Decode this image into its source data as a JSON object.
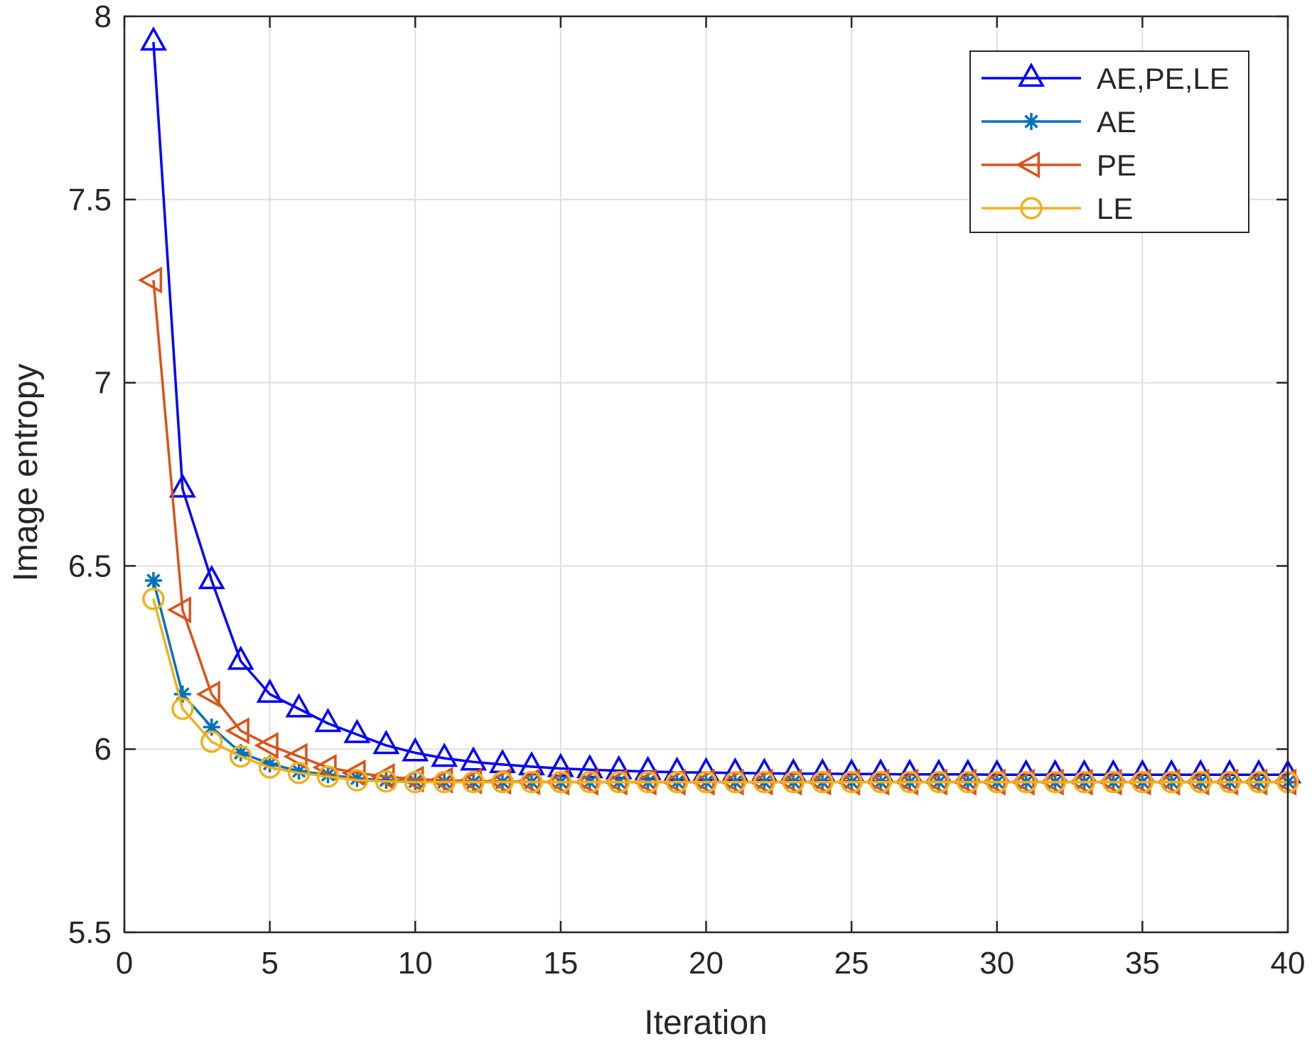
{
  "chart_data": {
    "type": "line",
    "title": "",
    "xlabel": "Iteration",
    "ylabel": "Image entropy",
    "xlim": [
      0,
      40
    ],
    "ylim": [
      5.5,
      8
    ],
    "xticks": [
      0,
      5,
      10,
      15,
      20,
      25,
      30,
      35,
      40
    ],
    "yticks": [
      5.5,
      6,
      6.5,
      7,
      7.5,
      8
    ],
    "xtick_labels": [
      "0",
      "5",
      "10",
      "15",
      "20",
      "25",
      "30",
      "35",
      "40"
    ],
    "ytick_labels": [
      "5.5",
      "6",
      "6.5",
      "7",
      "7.5",
      "8"
    ],
    "grid": true,
    "legend_position": "top-right",
    "x": [
      1,
      2,
      3,
      4,
      5,
      6,
      7,
      8,
      9,
      10,
      11,
      12,
      13,
      14,
      15,
      16,
      17,
      18,
      19,
      20,
      21,
      22,
      23,
      24,
      25,
      26,
      27,
      28,
      29,
      30,
      31,
      32,
      33,
      34,
      35,
      36,
      37,
      38,
      39,
      40
    ],
    "series": [
      {
        "name": "AE,PE,LE",
        "color": "#0000ff",
        "marker": "triangle-up",
        "values": [
          7.93,
          6.71,
          6.46,
          6.24,
          6.15,
          6.11,
          6.07,
          6.04,
          6.01,
          5.99,
          5.975,
          5.965,
          5.958,
          5.952,
          5.947,
          5.944,
          5.941,
          5.939,
          5.937,
          5.936,
          5.935,
          5.934,
          5.933,
          5.933,
          5.932,
          5.932,
          5.931,
          5.931,
          5.931,
          5.93,
          5.93,
          5.93,
          5.93,
          5.93,
          5.93,
          5.93,
          5.93,
          5.93,
          5.93,
          5.93
        ]
      },
      {
        "name": "AE",
        "color": "#0072bd",
        "marker": "asterisk",
        "values": [
          6.46,
          6.15,
          6.06,
          5.99,
          5.96,
          5.94,
          5.93,
          5.92,
          5.915,
          5.912,
          5.911,
          5.91,
          5.91,
          5.91,
          5.91,
          5.91,
          5.91,
          5.91,
          5.91,
          5.91,
          5.91,
          5.91,
          5.91,
          5.91,
          5.91,
          5.91,
          5.91,
          5.91,
          5.91,
          5.91,
          5.91,
          5.91,
          5.91,
          5.91,
          5.91,
          5.91,
          5.91,
          5.91,
          5.91,
          5.91
        ]
      },
      {
        "name": "PE",
        "color": "#d95319",
        "marker": "triangle-left",
        "values": [
          7.28,
          6.38,
          6.15,
          6.05,
          6.01,
          5.98,
          5.95,
          5.935,
          5.925,
          5.918,
          5.915,
          5.913,
          5.912,
          5.911,
          5.91,
          5.91,
          5.91,
          5.91,
          5.91,
          5.91,
          5.91,
          5.91,
          5.91,
          5.91,
          5.91,
          5.91,
          5.91,
          5.91,
          5.91,
          5.91,
          5.91,
          5.91,
          5.91,
          5.91,
          5.91,
          5.91,
          5.91,
          5.91,
          5.91,
          5.91
        ]
      },
      {
        "name": "LE",
        "color": "#edb120",
        "marker": "circle",
        "values": [
          6.41,
          6.11,
          6.02,
          5.98,
          5.95,
          5.935,
          5.925,
          5.915,
          5.912,
          5.91,
          5.91,
          5.91,
          5.91,
          5.91,
          5.91,
          5.91,
          5.91,
          5.91,
          5.91,
          5.91,
          5.91,
          5.91,
          5.91,
          5.91,
          5.91,
          5.91,
          5.91,
          5.91,
          5.91,
          5.91,
          5.91,
          5.91,
          5.91,
          5.91,
          5.91,
          5.91,
          5.91,
          5.91,
          5.91,
          5.91
        ]
      }
    ]
  }
}
